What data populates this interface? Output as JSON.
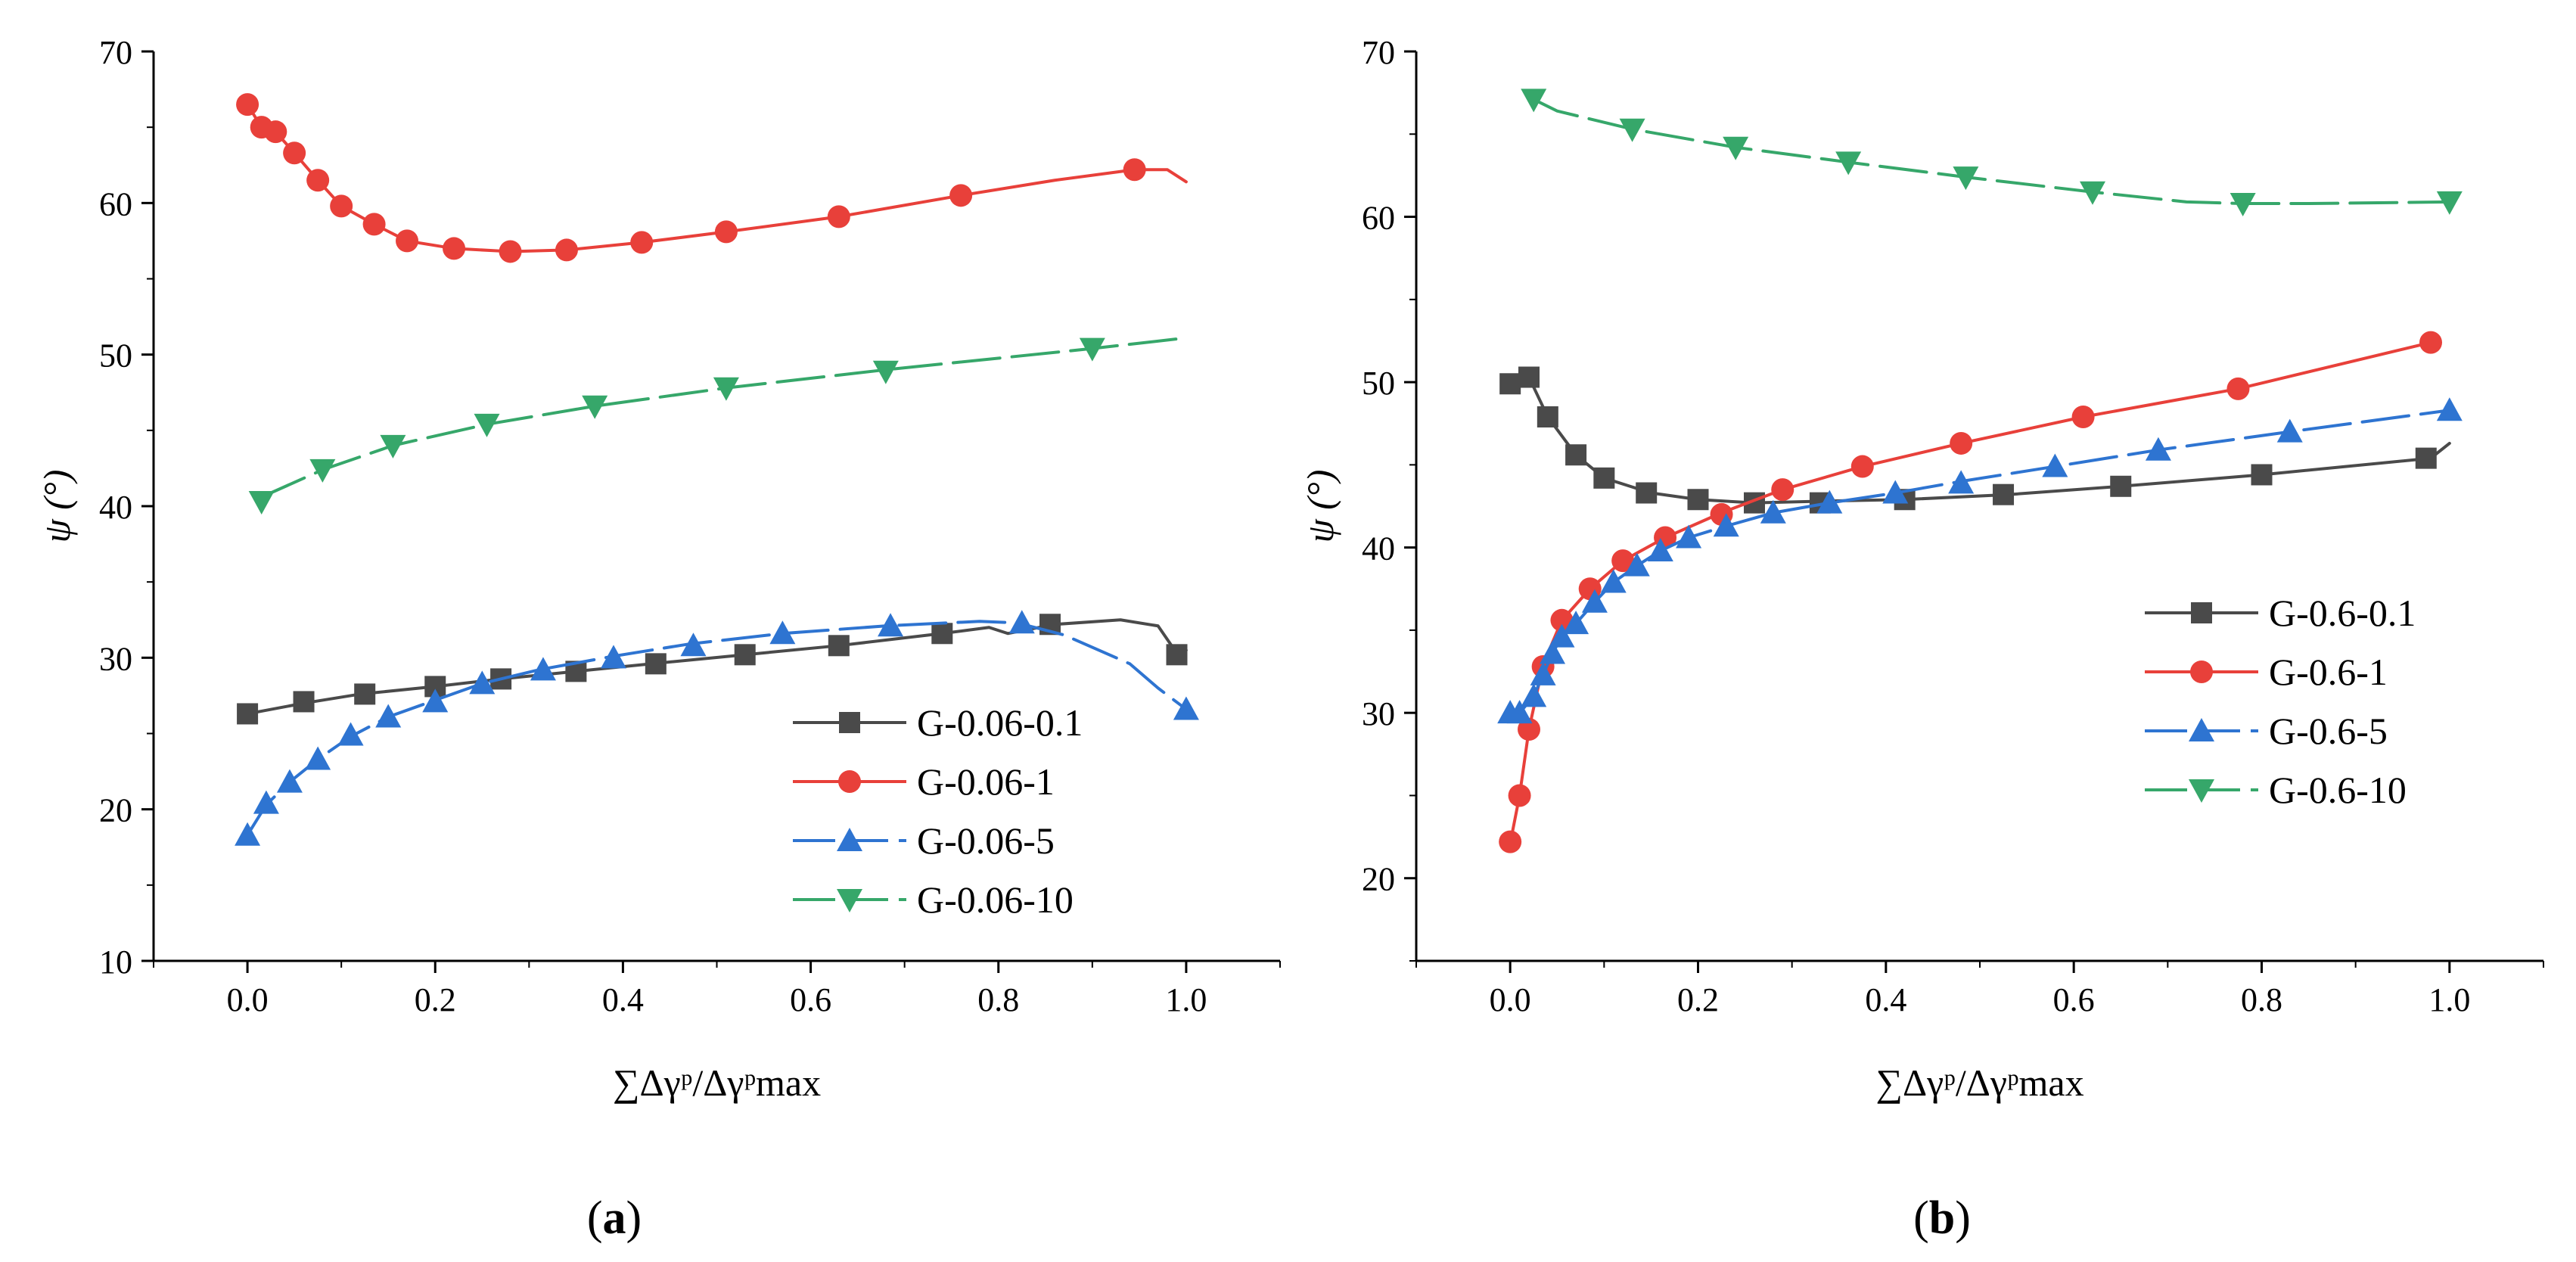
{
  "chart_data": [
    {
      "type": "line",
      "panel_label": "(a)",
      "panel_label_letter": "a",
      "ylabel": "ψ (°)",
      "xlabel": "∑Δγᵖ/Δγᵖmax",
      "xlim": [
        -0.1,
        1.1
      ],
      "ylim": [
        10,
        70
      ],
      "xticks": [
        "0.0",
        "0.2",
        "0.4",
        "0.6",
        "0.8",
        "1.0"
      ],
      "yticks": [
        "10",
        "20",
        "30",
        "40",
        "50",
        "60",
        "70"
      ],
      "legend_position": "bottom-right",
      "series": [
        {
          "name": "G-0.06-0.1",
          "color": "#4a4a4a",
          "marker": "square",
          "dash": "solid",
          "line": [
            [
              0.0,
              26.3
            ],
            [
              0.06,
              27.0
            ],
            [
              0.12,
              27.6
            ],
            [
              0.2,
              28.1
            ],
            [
              0.27,
              28.6
            ],
            [
              0.35,
              29.1
            ],
            [
              0.43,
              29.6
            ],
            [
              0.53,
              30.2
            ],
            [
              0.63,
              30.8
            ],
            [
              0.74,
              31.6
            ],
            [
              0.79,
              32.0
            ],
            [
              0.81,
              31.6
            ],
            [
              0.86,
              32.2
            ],
            [
              0.93,
              32.5
            ],
            [
              0.97,
              32.1
            ],
            [
              0.99,
              30.3
            ],
            [
              1.0,
              30.5
            ]
          ],
          "markers": [
            [
              0.0,
              26.3
            ],
            [
              0.06,
              27.1
            ],
            [
              0.125,
              27.6
            ],
            [
              0.2,
              28.1
            ],
            [
              0.27,
              28.6
            ],
            [
              0.35,
              29.1
            ],
            [
              0.435,
              29.6
            ],
            [
              0.53,
              30.2
            ],
            [
              0.63,
              30.8
            ],
            [
              0.74,
              31.6
            ],
            [
              0.855,
              32.2
            ],
            [
              0.99,
              30.2
            ]
          ]
        },
        {
          "name": "G-0.06-1",
          "color": "#e8403a",
          "marker": "circle",
          "dash": "solid",
          "line": [
            [
              0.0,
              66.5
            ],
            [
              0.015,
              65.0
            ],
            [
              0.03,
              64.7
            ],
            [
              0.05,
              63.3
            ],
            [
              0.075,
              61.5
            ],
            [
              0.1,
              59.8
            ],
            [
              0.135,
              58.6
            ],
            [
              0.17,
              57.5
            ],
            [
              0.22,
              57.0
            ],
            [
              0.28,
              56.8
            ],
            [
              0.34,
              56.9
            ],
            [
              0.42,
              57.4
            ],
            [
              0.51,
              58.1
            ],
            [
              0.63,
              59.1
            ],
            [
              0.76,
              60.5
            ],
            [
              0.86,
              61.5
            ],
            [
              0.945,
              62.2
            ],
            [
              0.98,
              62.2
            ],
            [
              1.0,
              61.4
            ]
          ],
          "markers": [
            [
              0.0,
              66.5
            ],
            [
              0.015,
              65.0
            ],
            [
              0.03,
              64.7
            ],
            [
              0.05,
              63.3
            ],
            [
              0.075,
              61.5
            ],
            [
              0.1,
              59.8
            ],
            [
              0.135,
              58.6
            ],
            [
              0.17,
              57.5
            ],
            [
              0.22,
              57.0
            ],
            [
              0.28,
              56.8
            ],
            [
              0.34,
              56.9
            ],
            [
              0.42,
              57.4
            ],
            [
              0.51,
              58.1
            ],
            [
              0.63,
              59.1
            ],
            [
              0.76,
              60.5
            ],
            [
              0.945,
              62.2
            ]
          ]
        },
        {
          "name": "G-0.06-5",
          "color": "#2e74d1",
          "marker": "triangle-up",
          "dash": "dashed",
          "line": [
            [
              0.0,
              18.3
            ],
            [
              0.02,
              20.3
            ],
            [
              0.045,
              21.8
            ],
            [
              0.075,
              23.3
            ],
            [
              0.11,
              24.8
            ],
            [
              0.15,
              26.1
            ],
            [
              0.2,
              27.2
            ],
            [
              0.25,
              28.3
            ],
            [
              0.31,
              29.2
            ],
            [
              0.39,
              30.1
            ],
            [
              0.47,
              30.9
            ],
            [
              0.57,
              31.6
            ],
            [
              0.68,
              32.1
            ],
            [
              0.78,
              32.4
            ],
            [
              0.82,
              32.3
            ],
            [
              0.87,
              31.5
            ],
            [
              0.94,
              29.6
            ],
            [
              0.97,
              28.0
            ],
            [
              1.0,
              26.6
            ]
          ],
          "markers": [
            [
              0.0,
              18.3
            ],
            [
              0.02,
              20.4
            ],
            [
              0.045,
              21.8
            ],
            [
              0.075,
              23.3
            ],
            [
              0.11,
              24.9
            ],
            [
              0.15,
              26.1
            ],
            [
              0.2,
              27.1
            ],
            [
              0.25,
              28.3
            ],
            [
              0.315,
              29.2
            ],
            [
              0.39,
              30.0
            ],
            [
              0.475,
              30.8
            ],
            [
              0.57,
              31.6
            ],
            [
              0.685,
              32.1
            ],
            [
              0.825,
              32.3
            ],
            [
              1.0,
              26.6
            ]
          ]
        },
        {
          "name": "G-0.06-10",
          "color": "#36a76a",
          "marker": "triangle-down",
          "dash": "dashed",
          "line": [
            [
              0.015,
              40.6
            ],
            [
              0.08,
              42.4
            ],
            [
              0.155,
              44.0
            ],
            [
              0.255,
              45.4
            ],
            [
              0.37,
              46.6
            ],
            [
              0.51,
              47.8
            ],
            [
              0.68,
              49.0
            ],
            [
              0.9,
              50.4
            ],
            [
              1.0,
              51.1
            ]
          ],
          "markers": [
            [
              0.015,
              40.3
            ],
            [
              0.08,
              42.4
            ],
            [
              0.155,
              44.0
            ],
            [
              0.255,
              45.4
            ],
            [
              0.37,
              46.6
            ],
            [
              0.51,
              47.8
            ],
            [
              0.68,
              48.9
            ],
            [
              0.9,
              50.4
            ]
          ]
        }
      ]
    },
    {
      "type": "line",
      "panel_label": "(b)",
      "panel_label_letter": "b",
      "ylabel": "ψ (°)",
      "xlabel": "∑Δγᵖ/Δγᵖmax",
      "xlim": [
        -0.1,
        1.1
      ],
      "ylim": [
        15,
        70
      ],
      "xticks": [
        "0.0",
        "0.2",
        "0.4",
        "0.6",
        "0.8",
        "1.0"
      ],
      "yticks": [
        "20",
        "30",
        "40",
        "50",
        "60",
        "70"
      ],
      "legend_position": "middle-right",
      "series": [
        {
          "name": "G-0.6-0.1",
          "color": "#4a4a4a",
          "marker": "square",
          "dash": "solid",
          "line": [
            [
              0.0,
              49.9
            ],
            [
              0.02,
              50.3
            ],
            [
              0.04,
              47.9
            ],
            [
              0.07,
              45.6
            ],
            [
              0.1,
              44.2
            ],
            [
              0.15,
              43.3
            ],
            [
              0.2,
              42.9
            ],
            [
              0.26,
              42.7
            ],
            [
              0.33,
              42.8
            ],
            [
              0.42,
              42.9
            ],
            [
              0.53,
              43.2
            ],
            [
              0.65,
              43.7
            ],
            [
              0.8,
              44.4
            ],
            [
              0.98,
              45.4
            ],
            [
              1.0,
              46.3
            ]
          ],
          "markers": [
            [
              0.0,
              49.9
            ],
            [
              0.02,
              50.3
            ],
            [
              0.04,
              47.9
            ],
            [
              0.07,
              45.6
            ],
            [
              0.1,
              44.2
            ],
            [
              0.145,
              43.3
            ],
            [
              0.2,
              42.9
            ],
            [
              0.26,
              42.7
            ],
            [
              0.33,
              42.7
            ],
            [
              0.42,
              42.9
            ],
            [
              0.525,
              43.2
            ],
            [
              0.65,
              43.7
            ],
            [
              0.8,
              44.4
            ],
            [
              0.975,
              45.4
            ]
          ]
        },
        {
          "name": "G-0.6-1",
          "color": "#e8403a",
          "marker": "circle",
          "dash": "solid",
          "line": [
            [
              0.0,
              22.1
            ],
            [
              0.01,
              25.0
            ],
            [
              0.02,
              29.0
            ],
            [
              0.035,
              32.9
            ],
            [
              0.055,
              35.6
            ],
            [
              0.085,
              37.5
            ],
            [
              0.12,
              39.2
            ],
            [
              0.165,
              40.6
            ],
            [
              0.225,
              42.1
            ],
            [
              0.29,
              43.5
            ],
            [
              0.375,
              44.9
            ],
            [
              0.48,
              46.3
            ],
            [
              0.61,
              47.9
            ],
            [
              0.775,
              49.6
            ],
            [
              0.98,
              52.4
            ]
          ],
          "markers": [
            [
              0.0,
              22.2
            ],
            [
              0.01,
              25.0
            ],
            [
              0.02,
              29.0
            ],
            [
              0.035,
              32.8
            ],
            [
              0.055,
              35.6
            ],
            [
              0.085,
              37.5
            ],
            [
              0.12,
              39.2
            ],
            [
              0.165,
              40.6
            ],
            [
              0.225,
              42.0
            ],
            [
              0.29,
              43.5
            ],
            [
              0.375,
              44.9
            ],
            [
              0.48,
              46.3
            ],
            [
              0.61,
              47.9
            ],
            [
              0.775,
              49.6
            ],
            [
              0.98,
              52.4
            ]
          ]
        },
        {
          "name": "G-0.6-5",
          "color": "#2e74d1",
          "marker": "triangle-up",
          "dash": "dashed",
          "line": [
            [
              0.0,
              30.0
            ],
            [
              0.01,
              30.0
            ],
            [
              0.025,
              31.0
            ],
            [
              0.035,
              32.3
            ],
            [
              0.045,
              33.6
            ],
            [
              0.055,
              34.6
            ],
            [
              0.07,
              35.4
            ],
            [
              0.09,
              36.7
            ],
            [
              0.11,
              37.9
            ],
            [
              0.135,
              38.9
            ],
            [
              0.16,
              39.8
            ],
            [
              0.19,
              40.6
            ],
            [
              0.23,
              41.3
            ],
            [
              0.28,
              42.1
            ],
            [
              0.34,
              42.7
            ],
            [
              0.41,
              43.3
            ],
            [
              0.48,
              44.0
            ],
            [
              0.58,
              44.9
            ],
            [
              0.69,
              45.9
            ],
            [
              0.83,
              47.0
            ],
            [
              1.0,
              48.3
            ]
          ],
          "markers": [
            [
              0.0,
              30.0
            ],
            [
              0.01,
              30.0
            ],
            [
              0.025,
              31.0
            ],
            [
              0.035,
              32.3
            ],
            [
              0.045,
              33.6
            ],
            [
              0.055,
              34.6
            ],
            [
              0.07,
              35.4
            ],
            [
              0.09,
              36.7
            ],
            [
              0.11,
              37.9
            ],
            [
              0.135,
              38.9
            ],
            [
              0.16,
              39.8
            ],
            [
              0.19,
              40.6
            ],
            [
              0.23,
              41.3
            ],
            [
              0.28,
              42.1
            ],
            [
              0.34,
              42.7
            ],
            [
              0.41,
              43.3
            ],
            [
              0.48,
              43.9
            ],
            [
              0.58,
              44.9
            ],
            [
              0.69,
              45.9
            ],
            [
              0.83,
              47.0
            ],
            [
              1.0,
              48.3
            ]
          ]
        },
        {
          "name": "G-0.6-10",
          "color": "#36a76a",
          "marker": "triangle-down",
          "dash": "dashed",
          "line": [
            [
              0.025,
              67.1
            ],
            [
              0.05,
              66.4
            ],
            [
              0.13,
              65.3
            ],
            [
              0.24,
              64.2
            ],
            [
              0.36,
              63.3
            ],
            [
              0.485,
              62.4
            ],
            [
              0.62,
              61.5
            ],
            [
              0.72,
              60.9
            ],
            [
              0.78,
              60.8
            ],
            [
              0.85,
              60.8
            ],
            [
              1.0,
              60.9
            ]
          ],
          "markers": [
            [
              0.025,
              67.1
            ],
            [
              0.13,
              65.3
            ],
            [
              0.24,
              64.2
            ],
            [
              0.36,
              63.3
            ],
            [
              0.485,
              62.4
            ],
            [
              0.62,
              61.5
            ],
            [
              0.78,
              60.8
            ],
            [
              1.0,
              60.9
            ]
          ]
        }
      ]
    }
  ]
}
